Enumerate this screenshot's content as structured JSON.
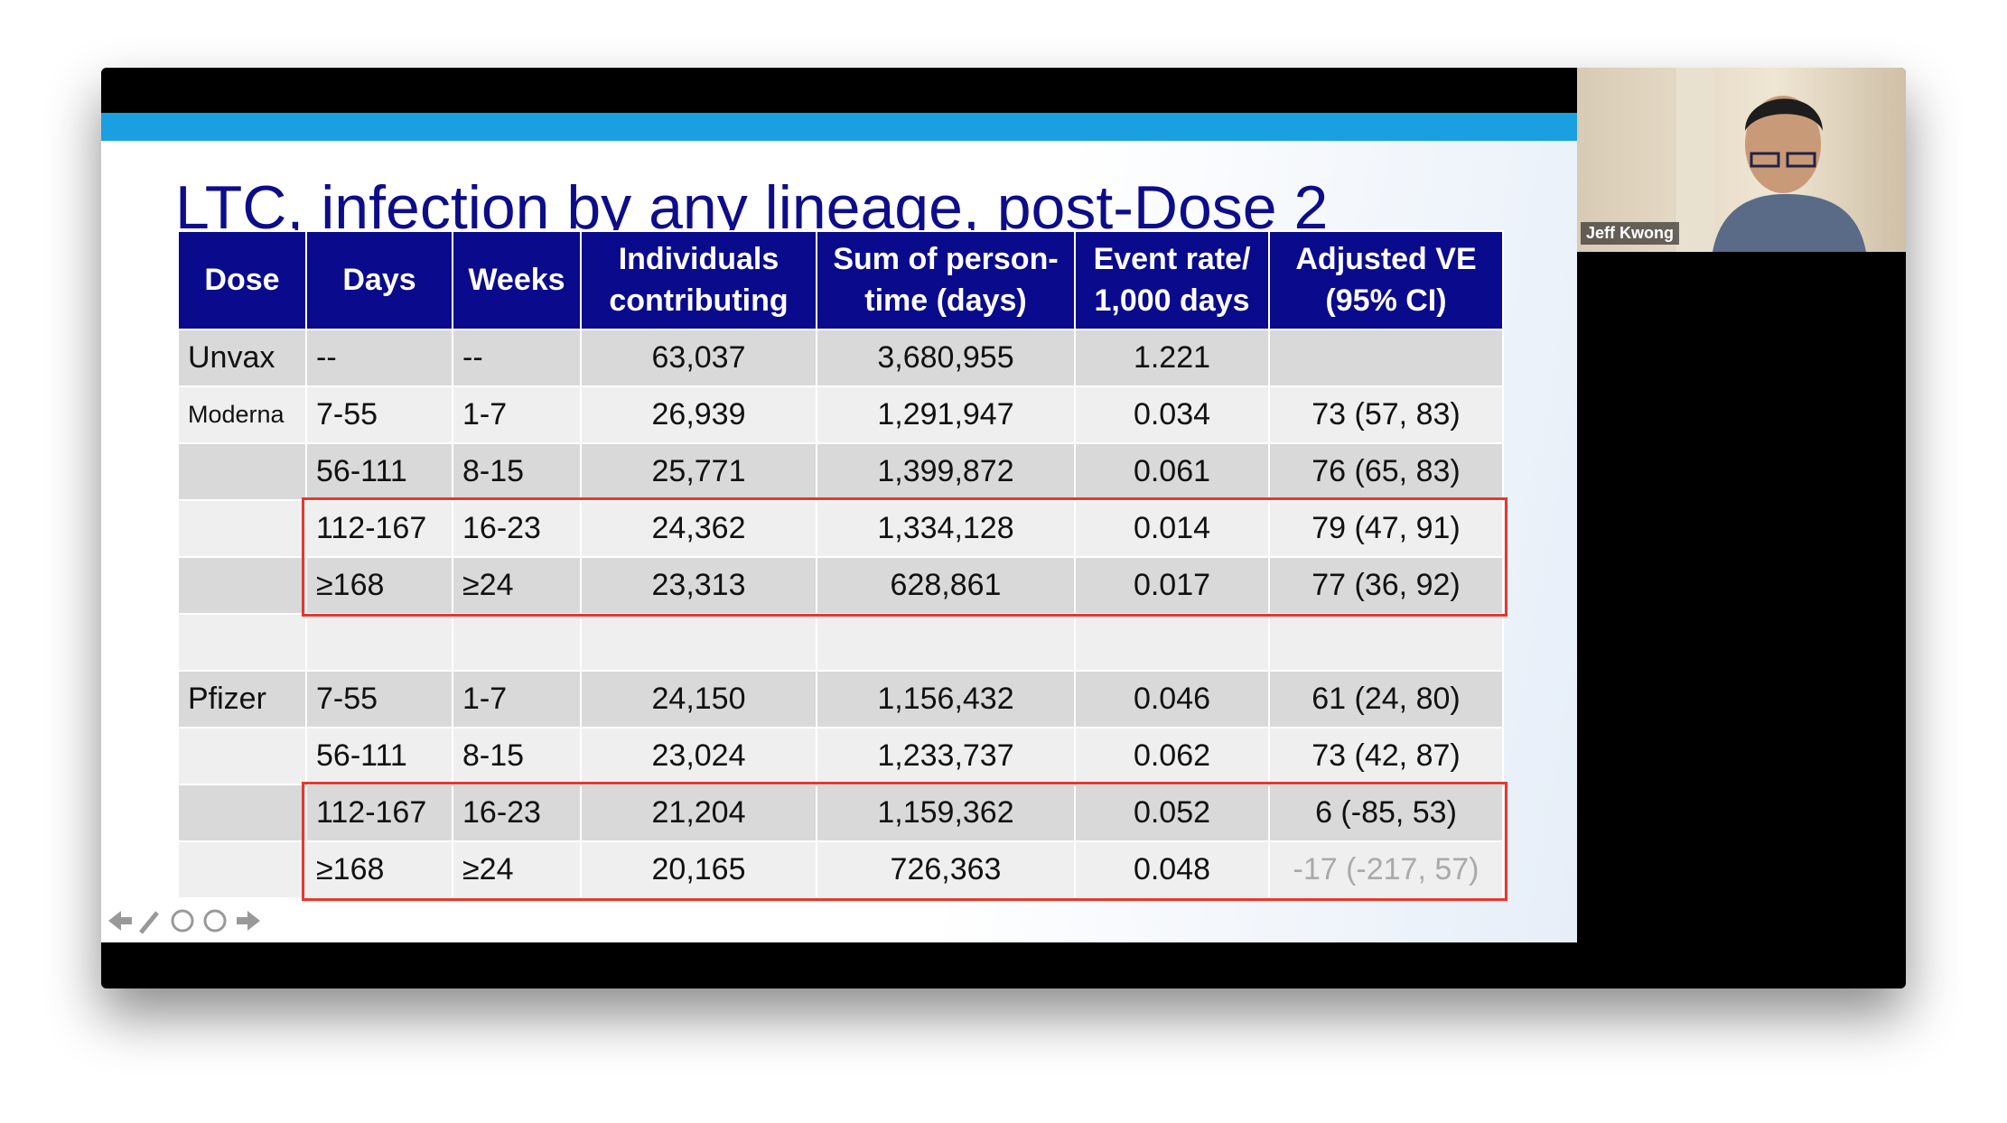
{
  "slide": {
    "title": "LTC, infection by any lineage, post-Dose 2",
    "table": {
      "header": [
        "Dose",
        "Days",
        "Weeks",
        "Individuals contributing",
        "Sum of person-time (days)",
        "Event rate/ 1,000 days",
        "Adjusted VE (95% CI)"
      ],
      "rows": [
        [
          "Unvax",
          "--",
          "--",
          "63,037",
          "3,680,955",
          "1.221",
          null
        ],
        [
          "Moderna",
          "7-55",
          "1-7",
          "26,939",
          "1,291,947",
          "0.034",
          "73 (57, 83)"
        ],
        [
          null,
          "56-111",
          "8-15",
          "25,771",
          "1,399,872",
          "0.061",
          "76 (65, 83)"
        ],
        [
          null,
          "112-167",
          "16-23",
          "24,362",
          "1,334,128",
          "0.014",
          "79 (47, 91)"
        ],
        [
          null,
          "≥168",
          "≥24",
          "23,313",
          "628,861",
          "0.017",
          "77 (36, 92)"
        ],
        [
          null,
          null,
          null,
          null,
          null,
          null,
          null
        ],
        [
          "Pfizer",
          "7-55",
          "1-7",
          "24,150",
          "1,156,432",
          "0.046",
          "61 (24, 80)"
        ],
        [
          null,
          "56-111",
          "8-15",
          "23,024",
          "1,233,737",
          "0.062",
          "73 (42, 87)"
        ],
        [
          null,
          "112-167",
          "16-23",
          "21,204",
          "1,159,362",
          "0.052",
          "6 (-85, 53)"
        ],
        [
          null,
          "≥168",
          "≥24",
          "20,165",
          "726,363",
          "0.048",
          "-17 (-217, 57)"
        ]
      ]
    }
  },
  "webcam": {
    "name": "Jeff Kwong"
  }
}
